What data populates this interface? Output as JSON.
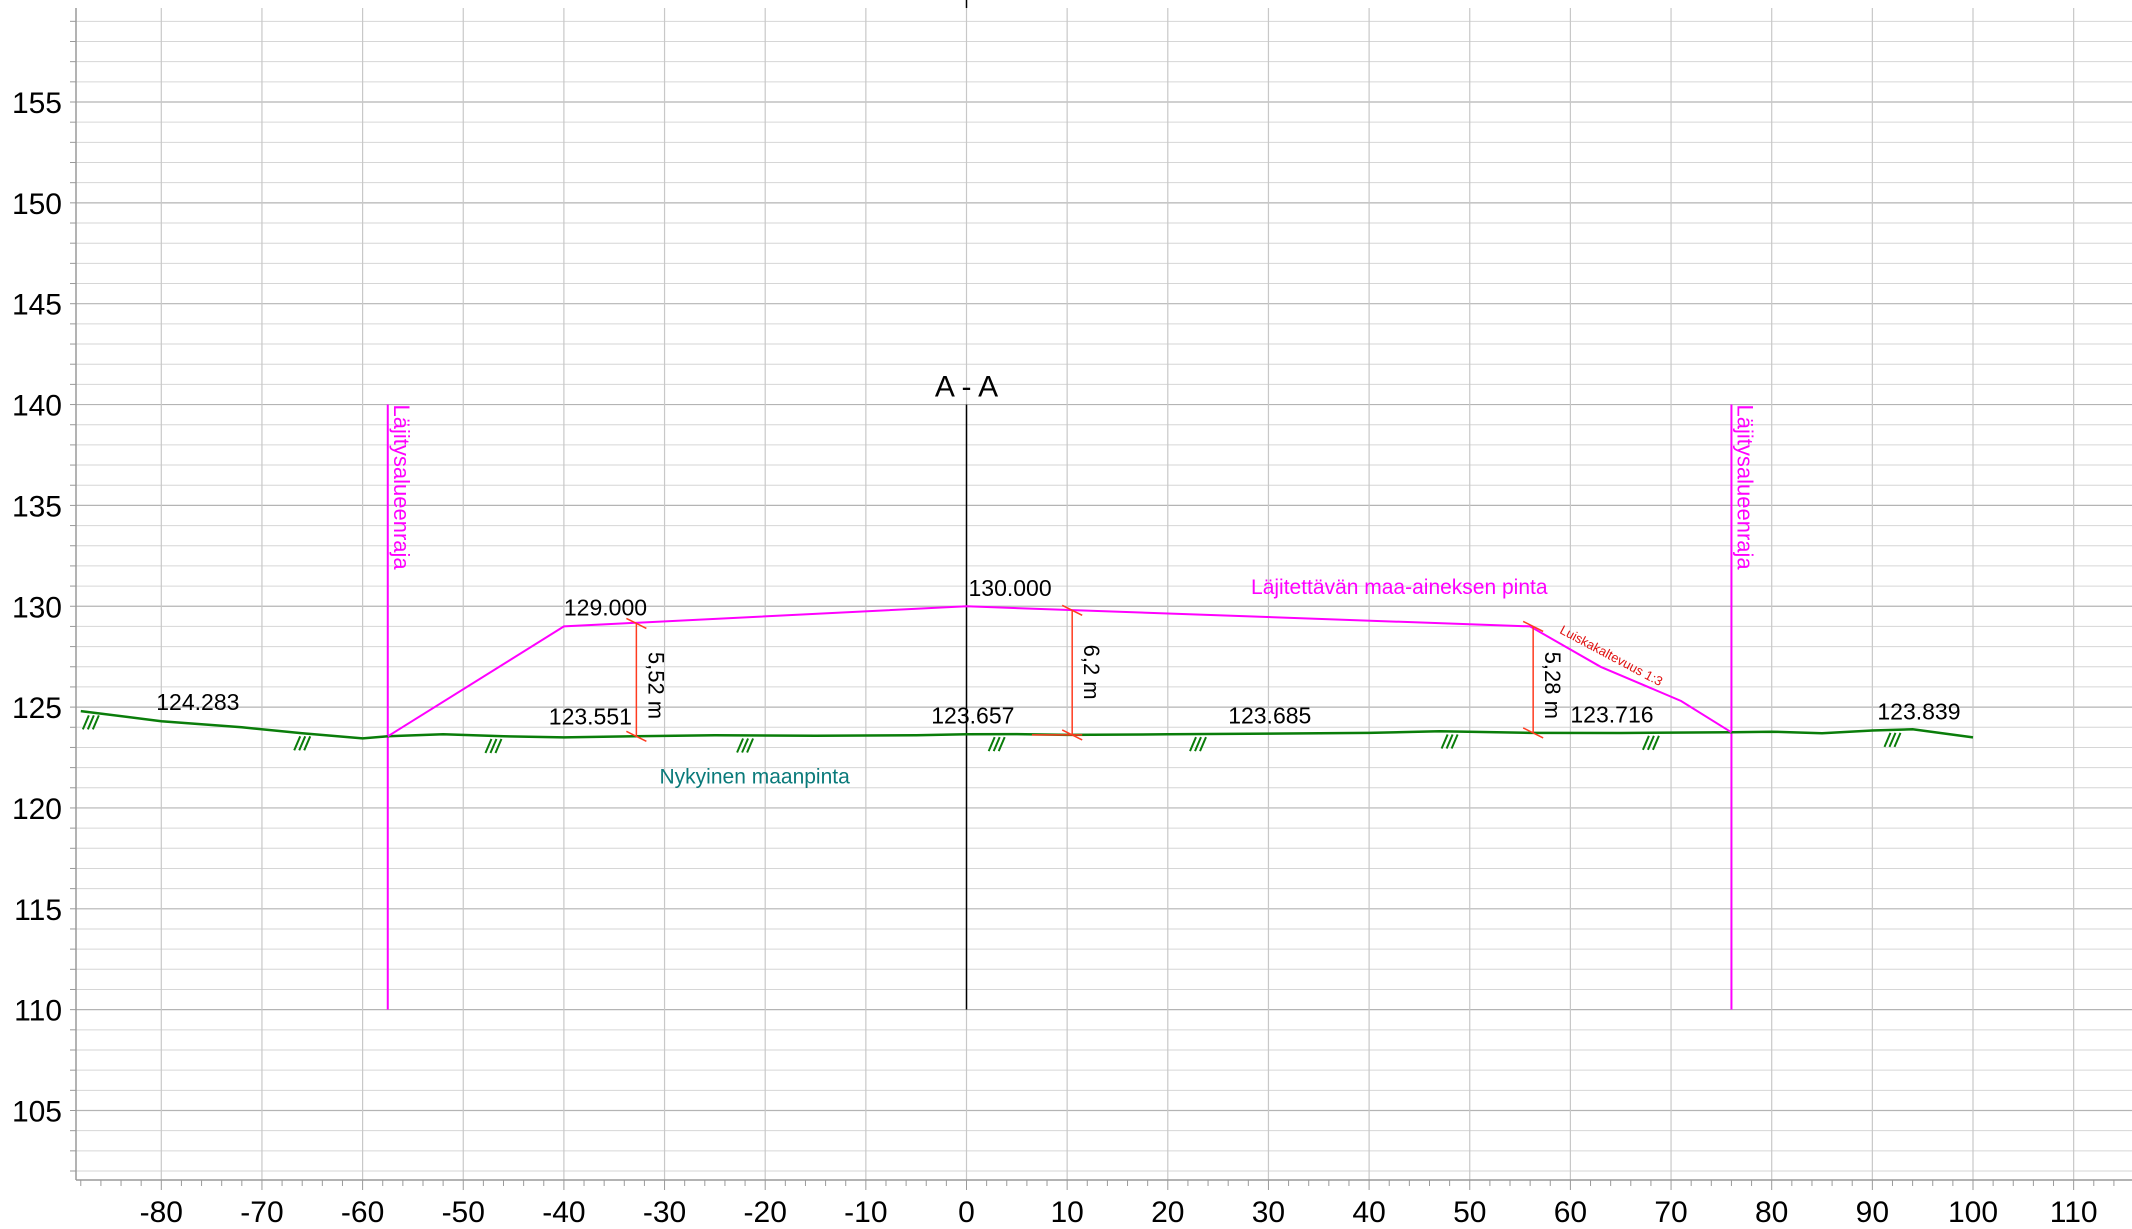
{
  "chart_data": {
    "type": "line",
    "title": "A - A",
    "xlabel": "",
    "ylabel": "",
    "xlim": [
      -88,
      115
    ],
    "ylim": [
      101.5,
      159.5
    ],
    "grid": true,
    "x_ticks": [
      "-80",
      "-70",
      "-60",
      "-50",
      "-40",
      "-30",
      "-20",
      "-10",
      "0",
      "10",
      "20",
      "30",
      "40",
      "50",
      "60",
      "70",
      "80",
      "90",
      "100",
      "110"
    ],
    "y_ticks": [
      "105",
      "110",
      "115",
      "120",
      "125",
      "130",
      "135",
      "140",
      "145",
      "150",
      "155"
    ],
    "colors": {
      "ground": "#0a7d0a",
      "fill_surface": "#ff00ff",
      "boundary": "#ff00ff",
      "dimension": "#ff3b1f",
      "centerline": "#000000",
      "ground_label": "#0a7a7a",
      "grid": "#c8c8c8"
    },
    "series": [
      {
        "label": "Nykyinen maanpinta",
        "x": [
          -88,
          -80,
          -72,
          -66,
          -60,
          -57.5,
          -52,
          -46,
          -40,
          -33,
          -25,
          -15,
          -5,
          0,
          5,
          10,
          20,
          30,
          40,
          47,
          56,
          65,
          76,
          80,
          85,
          90,
          94,
          100
        ],
        "y": [
          124.8,
          124.3,
          124.0,
          123.7,
          123.45,
          123.55,
          123.65,
          123.55,
          123.5,
          123.55,
          123.6,
          123.58,
          123.6,
          123.657,
          123.66,
          123.62,
          123.65,
          123.685,
          123.72,
          123.8,
          123.72,
          123.716,
          123.75,
          123.78,
          123.7,
          123.84,
          123.9,
          123.5
        ]
      },
      {
        "label": "Läjitettävän maa-aineksen pinta",
        "x": [
          -57.5,
          -40,
          0,
          56,
          63,
          71,
          76
        ],
        "y": [
          123.55,
          129.0,
          130.0,
          129.0,
          127.0,
          125.3,
          123.75
        ]
      }
    ],
    "elevation_labels": [
      {
        "text": "124.283",
        "x": -80.5,
        "y": 124.55
      },
      {
        "text": "129.000",
        "x": -40,
        "y": 129.25
      },
      {
        "text": "123.551",
        "x": -41.5,
        "y": 123.85
      },
      {
        "text": "130.000",
        "x": 0.2,
        "y": 130.2
      },
      {
        "text": "123.657",
        "x": -3.5,
        "y": 123.9
      },
      {
        "text": "123.685",
        "x": 26,
        "y": 123.9
      },
      {
        "text": "123.716",
        "x": 60,
        "y": 123.95
      },
      {
        "text": "123.839",
        "x": 90.5,
        "y": 124.1
      }
    ],
    "boundary_label": "Läjitysalueenraja",
    "boundaries_x": [
      -57.5,
      76
    ],
    "boundaries_y_range": [
      110,
      140
    ],
    "centerline_x": 0,
    "centerline_y_range": [
      110,
      140
    ],
    "dimensions": [
      {
        "text": "5,52 m",
        "x": -32.8,
        "y_bottom": 123.55,
        "y_top": 129.15
      },
      {
        "text": "6,2 m",
        "x": 10.5,
        "y_bottom": 123.62,
        "y_top": 129.8
      },
      {
        "text": "5,28 m",
        "x": 56.3,
        "y_bottom": 123.72,
        "y_top": 129.0
      }
    ],
    "slope_label": "Luiskakaltevuus 1:3",
    "slope_label_position": {
      "x": 66.5,
      "y": 127.3
    },
    "ground_label": "Nykyinen maanpinta",
    "ground_label_position": {
      "x": -30.5,
      "y": 121.2
    },
    "surface_label_position": {
      "x": 43,
      "y": 130.6
    },
    "hatch_x": [
      -87,
      -66,
      -47,
      -22,
      3,
      23,
      48,
      68,
      92
    ]
  }
}
